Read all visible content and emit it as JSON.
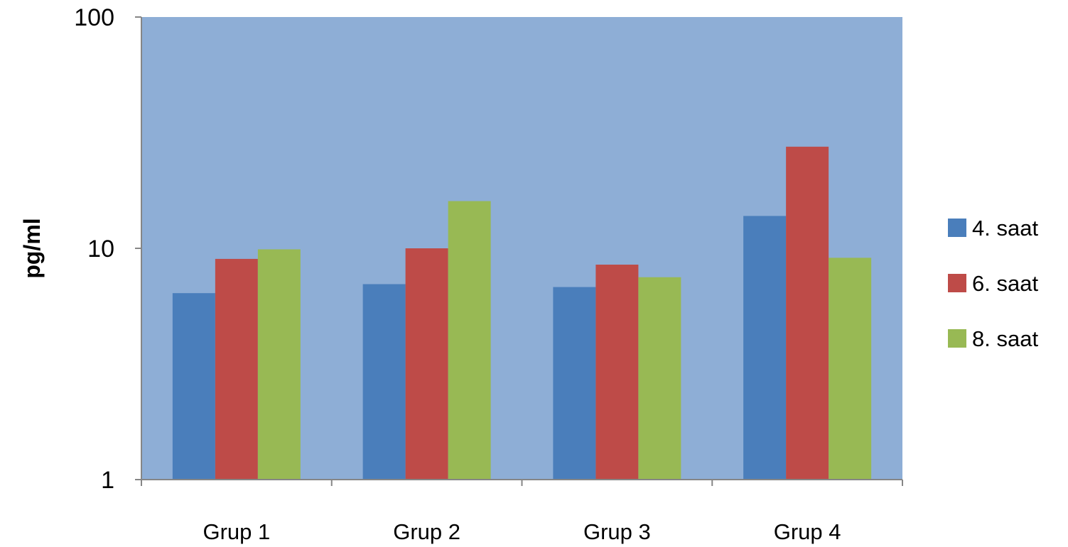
{
  "chart_data": {
    "type": "bar",
    "title": "",
    "xlabel": "",
    "ylabel": "pg/ml",
    "yscale": "log",
    "ylim": [
      1,
      100
    ],
    "yticks": [
      {
        "value": 1,
        "label": "1"
      },
      {
        "value": 10,
        "label": "10"
      },
      {
        "value": 100,
        "label": "100"
      }
    ],
    "categories": [
      "Grup 1",
      "Grup 2",
      "Grup 3",
      "Grup 4"
    ],
    "series": [
      {
        "name": "4. saat",
        "color": "#4a7ebb",
        "values": [
          6.4,
          7.0,
          6.8,
          13.8
        ]
      },
      {
        "name": "6. saat",
        "color": "#be4b48",
        "values": [
          9.0,
          10.0,
          8.5,
          27.5
        ]
      },
      {
        "name": "8. saat",
        "color": "#98b954",
        "values": [
          9.9,
          16.0,
          7.5,
          9.1
        ]
      }
    ],
    "grid": false,
    "legend_position": "right",
    "plot_background": "#8eaed6"
  }
}
